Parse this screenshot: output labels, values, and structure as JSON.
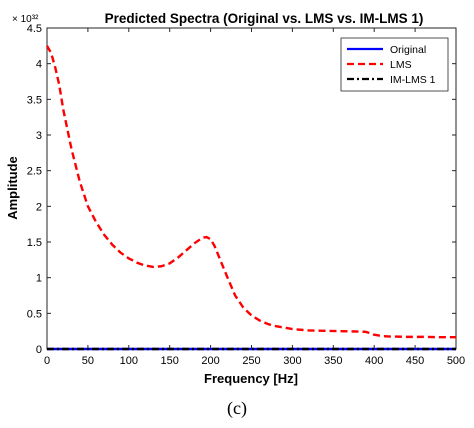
{
  "chart_data": {
    "type": "line",
    "title": "Predicted Spectra (Original vs. LMS vs. IM-LMS 1)",
    "y_multiplier": "× 10³²",
    "xlabel": "Frequency [Hz]",
    "ylabel": "Amplitude",
    "xlim": [
      0,
      500
    ],
    "ylim": [
      0,
      4.5
    ],
    "xticks": [
      0,
      50,
      100,
      150,
      200,
      250,
      300,
      350,
      400,
      450,
      500
    ],
    "yticks": [
      0,
      0.5,
      1,
      1.5,
      2,
      2.5,
      3,
      3.5,
      4,
      4.5
    ],
    "ytick_labels": [
      "0",
      "0.5",
      "1",
      "1.5",
      "2",
      "2.5",
      "3",
      "3.5",
      "4",
      "4.5"
    ],
    "grid": false,
    "legend_position": "top-right",
    "series": [
      {
        "name": "Original",
        "color": "#0000ff",
        "style": "solid",
        "x": [
          0,
          500
        ],
        "y": [
          0,
          0
        ]
      },
      {
        "name": "LMS",
        "color": "#ff0000",
        "style": "dashed",
        "x": [
          0,
          5,
          10,
          15,
          20,
          30,
          40,
          50,
          60,
          70,
          80,
          90,
          100,
          110,
          120,
          130,
          140,
          150,
          160,
          170,
          180,
          190,
          195,
          200,
          205,
          210,
          220,
          230,
          240,
          250,
          260,
          270,
          280,
          290,
          300,
          320,
          340,
          360,
          380,
          390,
          400,
          410,
          420,
          440,
          460,
          480,
          500
        ],
        "y": [
          4.25,
          4.15,
          3.95,
          3.7,
          3.35,
          2.8,
          2.35,
          2.0,
          1.78,
          1.6,
          1.46,
          1.35,
          1.27,
          1.21,
          1.17,
          1.15,
          1.16,
          1.2,
          1.28,
          1.38,
          1.48,
          1.56,
          1.57,
          1.54,
          1.44,
          1.3,
          1.02,
          0.75,
          0.58,
          0.47,
          0.4,
          0.35,
          0.32,
          0.3,
          0.28,
          0.26,
          0.255,
          0.25,
          0.245,
          0.24,
          0.2,
          0.18,
          0.175,
          0.17,
          0.17,
          0.165,
          0.165
        ]
      },
      {
        "name": "IM-LMS 1",
        "color": "#000000",
        "style": "dashdot",
        "x": [
          0,
          500
        ],
        "y": [
          0,
          0
        ]
      }
    ]
  },
  "caption": "(c)"
}
